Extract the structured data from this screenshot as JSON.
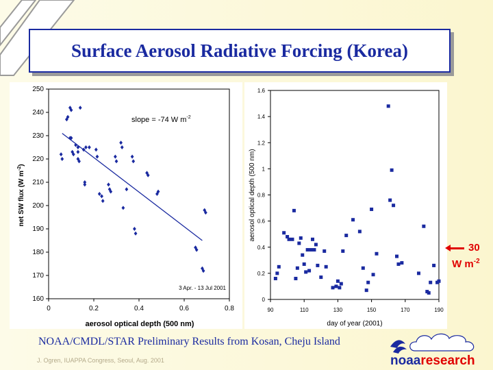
{
  "title": "Surface Aerosol Radiative Forcing (Korea)",
  "footer": "NOAA/CMDL/STAR Preliminary Results from Kosan, Cheju Island",
  "credit": "J. Ogren, IUAPPA Congress, Seoul, Aug. 2001",
  "logo": {
    "word1": "noaa",
    "word2": "research"
  },
  "annotation": {
    "value": "30",
    "unit": "W m",
    "sup": "-2",
    "color": "#e00000"
  },
  "colors": {
    "title": "#1a2aa0",
    "points": "#1a2aa0",
    "fit": "#1a2aa0",
    "accent": "#e00000"
  },
  "chart_data": [
    {
      "type": "scatter",
      "slope_label": "slope = -74 W m",
      "slope_sup": "-2",
      "date_label": "3 Apr. - 13 Jul 2001",
      "xlabel": "aerosol optical depth (500 nm)",
      "ylabel_main": "net SW flux (W m",
      "ylabel_sup": "-2",
      "ylabel_end": ")",
      "xlim": [
        0,
        0.8
      ],
      "ylim": [
        160,
        250
      ],
      "xticks": [
        "0",
        "0.2",
        "0.4",
        "0.6",
        "0.8"
      ],
      "yticks": [
        "160",
        "170",
        "180",
        "190",
        "200",
        "210",
        "220",
        "230",
        "240",
        "250"
      ],
      "fit": {
        "x": [
          0.06,
          0.68
        ],
        "y": [
          231,
          185
        ]
      },
      "points": [
        [
          0.055,
          222
        ],
        [
          0.06,
          220
        ],
        [
          0.08,
          237
        ],
        [
          0.085,
          238
        ],
        [
          0.095,
          242
        ],
        [
          0.1,
          241
        ],
        [
          0.095,
          229
        ],
        [
          0.1,
          229
        ],
        [
          0.105,
          223
        ],
        [
          0.11,
          222
        ],
        [
          0.12,
          226
        ],
        [
          0.13,
          225
        ],
        [
          0.13,
          223
        ],
        [
          0.13,
          220
        ],
        [
          0.135,
          219
        ],
        [
          0.14,
          242
        ],
        [
          0.155,
          224
        ],
        [
          0.16,
          210
        ],
        [
          0.16,
          209
        ],
        [
          0.165,
          225
        ],
        [
          0.18,
          225
        ],
        [
          0.21,
          224
        ],
        [
          0.215,
          221
        ],
        [
          0.225,
          205
        ],
        [
          0.235,
          204
        ],
        [
          0.24,
          202
        ],
        [
          0.265,
          209
        ],
        [
          0.27,
          207
        ],
        [
          0.275,
          206
        ],
        [
          0.295,
          221
        ],
        [
          0.3,
          219
        ],
        [
          0.32,
          227
        ],
        [
          0.325,
          225
        ],
        [
          0.33,
          199
        ],
        [
          0.345,
          207
        ],
        [
          0.37,
          221
        ],
        [
          0.375,
          219
        ],
        [
          0.38,
          190
        ],
        [
          0.385,
          188
        ],
        [
          0.435,
          214
        ],
        [
          0.44,
          213
        ],
        [
          0.48,
          205
        ],
        [
          0.485,
          206
        ],
        [
          0.65,
          182
        ],
        [
          0.655,
          181
        ],
        [
          0.68,
          173
        ],
        [
          0.685,
          172
        ],
        [
          0.69,
          198
        ],
        [
          0.695,
          197
        ]
      ]
    },
    {
      "type": "scatter",
      "xlabel": "day of year (2001)",
      "ylabel": "aerosol optical depth (500 nm)",
      "xlim": [
        90,
        190
      ],
      "ylim": [
        0,
        1.6
      ],
      "xticks": [
        "90",
        "110",
        "130",
        "150",
        "170",
        "190"
      ],
      "yticks": [
        "0",
        "0.2",
        "0.4",
        "0.6",
        "0.8",
        "1",
        "1.2",
        "1.4",
        "1.6"
      ],
      "points": [
        [
          93,
          0.16
        ],
        [
          94,
          0.2
        ],
        [
          95,
          0.25
        ],
        [
          98,
          0.51
        ],
        [
          100,
          0.48
        ],
        [
          101,
          0.46
        ],
        [
          103,
          0.46
        ],
        [
          104,
          0.68
        ],
        [
          105,
          0.16
        ],
        [
          106,
          0.24
        ],
        [
          107,
          0.43
        ],
        [
          108,
          0.47
        ],
        [
          109,
          0.34
        ],
        [
          110,
          0.27
        ],
        [
          111,
          0.21
        ],
        [
          112,
          0.38
        ],
        [
          113,
          0.22
        ],
        [
          114,
          0.38
        ],
        [
          115,
          0.46
        ],
        [
          116,
          0.38
        ],
        [
          117,
          0.42
        ],
        [
          118,
          0.26
        ],
        [
          120,
          0.17
        ],
        [
          122,
          0.37
        ],
        [
          123,
          0.25
        ],
        [
          127,
          0.09
        ],
        [
          129,
          0.1
        ],
        [
          130,
          0.14
        ],
        [
          131,
          0.09
        ],
        [
          132,
          0.12
        ],
        [
          133,
          0.37
        ],
        [
          135,
          0.49
        ],
        [
          139,
          0.61
        ],
        [
          143,
          0.52
        ],
        [
          145,
          0.24
        ],
        [
          147,
          0.07
        ],
        [
          148,
          0.13
        ],
        [
          150,
          0.69
        ],
        [
          151,
          0.19
        ],
        [
          153,
          0.35
        ],
        [
          160,
          1.48
        ],
        [
          161,
          0.76
        ],
        [
          162,
          0.99
        ],
        [
          163,
          0.72
        ],
        [
          165,
          0.33
        ],
        [
          166,
          0.27
        ],
        [
          168,
          0.28
        ],
        [
          178,
          0.2
        ],
        [
          181,
          0.56
        ],
        [
          183,
          0.06
        ],
        [
          184,
          0.05
        ],
        [
          185,
          0.13
        ],
        [
          187,
          0.26
        ],
        [
          189,
          0.13
        ],
        [
          190,
          0.14
        ]
      ]
    }
  ]
}
